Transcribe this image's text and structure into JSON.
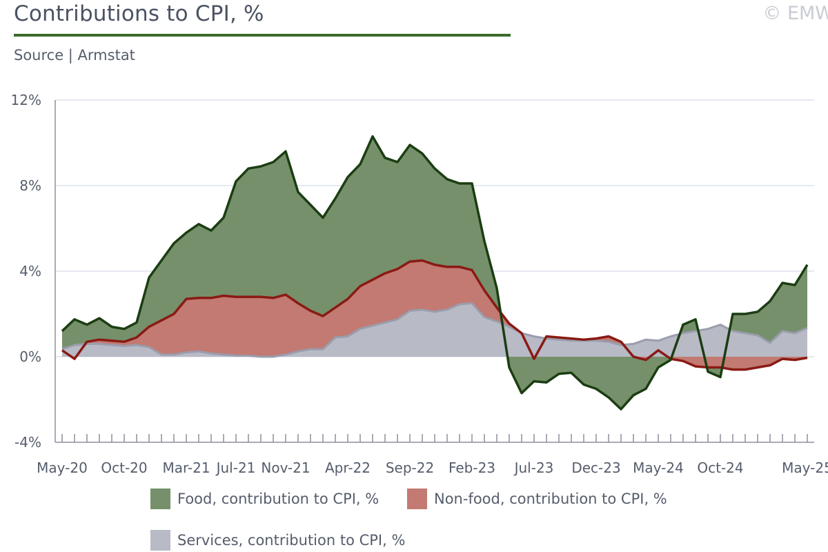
{
  "header": {
    "title": "Contributions to CPI, %",
    "copyright": "© EMW",
    "source": "Source | Armstat"
  },
  "colors": {
    "food_fill": "#75906b",
    "food_line": "#1b3d12",
    "nonfood_fill": "#c27a72",
    "nonfood_line": "#8a1a14",
    "services_fill": "#b8bac6",
    "services_line": "#9a9dac",
    "grid": "#d5dce8",
    "axis": "#8a8f9a"
  },
  "chart_data": {
    "type": "area",
    "title": "Contributions to CPI, %",
    "xlabel": "",
    "ylabel": "",
    "ylim": [
      -4,
      12
    ],
    "yticks": [
      "-4%",
      "0%",
      "4%",
      "8%",
      "12%"
    ],
    "ytick_values": [
      -4,
      0,
      4,
      8,
      12
    ],
    "x": [
      "May-20",
      "Jun-20",
      "Jul-20",
      "Aug-20",
      "Sep-20",
      "Oct-20",
      "Nov-20",
      "Dec-20",
      "Jan-21",
      "Feb-21",
      "Mar-21",
      "Apr-21",
      "May-21",
      "Jun-21",
      "Jul-21",
      "Aug-21",
      "Sep-21",
      "Oct-21",
      "Nov-21",
      "Dec-21",
      "Jan-22",
      "Feb-22",
      "Mar-22",
      "Apr-22",
      "May-22",
      "Jun-22",
      "Jul-22",
      "Aug-22",
      "Sep-22",
      "Oct-22",
      "Nov-22",
      "Dec-22",
      "Jan-23",
      "Feb-23",
      "Mar-23",
      "Apr-23",
      "May-23",
      "Jun-23",
      "Jul-23",
      "Aug-23",
      "Sep-23",
      "Oct-23",
      "Nov-23",
      "Dec-23",
      "Jan-24",
      "Feb-24",
      "Mar-24",
      "Apr-24",
      "May-24",
      "Jun-24",
      "Jul-24",
      "Aug-24",
      "Sep-24",
      "Oct-24",
      "Nov-24",
      "Dec-24",
      "Jan-25",
      "Feb-25",
      "Mar-25",
      "Apr-25",
      "May-25"
    ],
    "x_tick_labels": [
      {
        "index": 0,
        "label": "May-20"
      },
      {
        "index": 5,
        "label": "Oct-20"
      },
      {
        "index": 10,
        "label": "Mar-21"
      },
      {
        "index": 14,
        "label": "Jul-21"
      },
      {
        "index": 18,
        "label": "Nov-21"
      },
      {
        "index": 23,
        "label": "Apr-22"
      },
      {
        "index": 28,
        "label": "Sep-22"
      },
      {
        "index": 33,
        "label": "Feb-23"
      },
      {
        "index": 38,
        "label": "Jul-23"
      },
      {
        "index": 43,
        "label": "Dec-23"
      },
      {
        "index": 48,
        "label": "May-24"
      },
      {
        "index": 53,
        "label": "Oct-24"
      },
      {
        "index": 60,
        "label": "May-25"
      }
    ],
    "series": [
      {
        "name": "Food, contribution to CPI, %",
        "values": [
          1.2,
          1.75,
          1.5,
          1.8,
          1.4,
          1.3,
          1.6,
          3.7,
          4.5,
          5.3,
          5.8,
          6.2,
          5.9,
          6.5,
          8.2,
          8.8,
          8.9,
          9.1,
          9.6,
          7.7,
          7.1,
          6.5,
          7.4,
          8.4,
          9.0,
          10.3,
          9.3,
          9.1,
          9.9,
          9.5,
          8.8,
          8.3,
          8.1,
          8.1,
          5.4,
          3.2,
          -0.5,
          -1.7,
          -1.15,
          -1.2,
          -0.8,
          -0.75,
          -1.3,
          -1.5,
          -1.9,
          -2.45,
          -1.8,
          -1.5,
          -0.5,
          -0.15,
          1.5,
          1.75,
          -0.7,
          -0.95,
          2.0,
          2.0,
          2.1,
          2.6,
          3.45,
          3.35,
          4.3
        ]
      },
      {
        "name": "Non-food, contribution to CPI, %",
        "values": [
          0.3,
          -0.1,
          0.7,
          0.8,
          0.75,
          0.7,
          0.9,
          1.4,
          1.7,
          2.0,
          2.7,
          2.75,
          2.75,
          2.85,
          2.8,
          2.8,
          2.8,
          2.75,
          2.9,
          2.5,
          2.15,
          1.9,
          2.3,
          2.7,
          3.3,
          3.6,
          3.9,
          4.1,
          4.45,
          4.5,
          4.3,
          4.2,
          4.2,
          4.05,
          3.1,
          2.3,
          1.55,
          1.1,
          -0.1,
          0.95,
          0.9,
          0.85,
          0.8,
          0.85,
          0.95,
          0.7,
          0.0,
          -0.15,
          0.3,
          -0.1,
          -0.2,
          -0.45,
          -0.5,
          -0.5,
          -0.6,
          -0.6,
          -0.5,
          -0.4,
          -0.1,
          -0.15,
          -0.05
        ]
      },
      {
        "name": "Services, contribution to CPI, %",
        "values": [
          0.35,
          0.55,
          0.6,
          0.6,
          0.55,
          0.5,
          0.55,
          0.45,
          0.1,
          0.1,
          0.2,
          0.25,
          0.15,
          0.1,
          0.05,
          0.05,
          0.0,
          0.0,
          0.1,
          0.25,
          0.35,
          0.35,
          0.9,
          0.95,
          1.3,
          1.45,
          1.6,
          1.75,
          2.15,
          2.2,
          2.1,
          2.2,
          2.45,
          2.5,
          1.85,
          1.65,
          1.4,
          1.1,
          0.95,
          0.85,
          0.8,
          0.75,
          0.75,
          0.75,
          0.7,
          0.55,
          0.6,
          0.8,
          0.75,
          0.95,
          1.1,
          1.2,
          1.3,
          1.5,
          1.2,
          1.1,
          1.0,
          0.65,
          1.2,
          1.1,
          1.35
        ]
      }
    ],
    "legend": [
      {
        "label": "Food, contribution to CPI, %",
        "color_key": "food_fill"
      },
      {
        "label": "Non-food, contribution to CPI, %",
        "color_key": "nonfood_fill"
      },
      {
        "label": "Services, contribution to CPI, %",
        "color_key": "services_fill"
      }
    ]
  }
}
